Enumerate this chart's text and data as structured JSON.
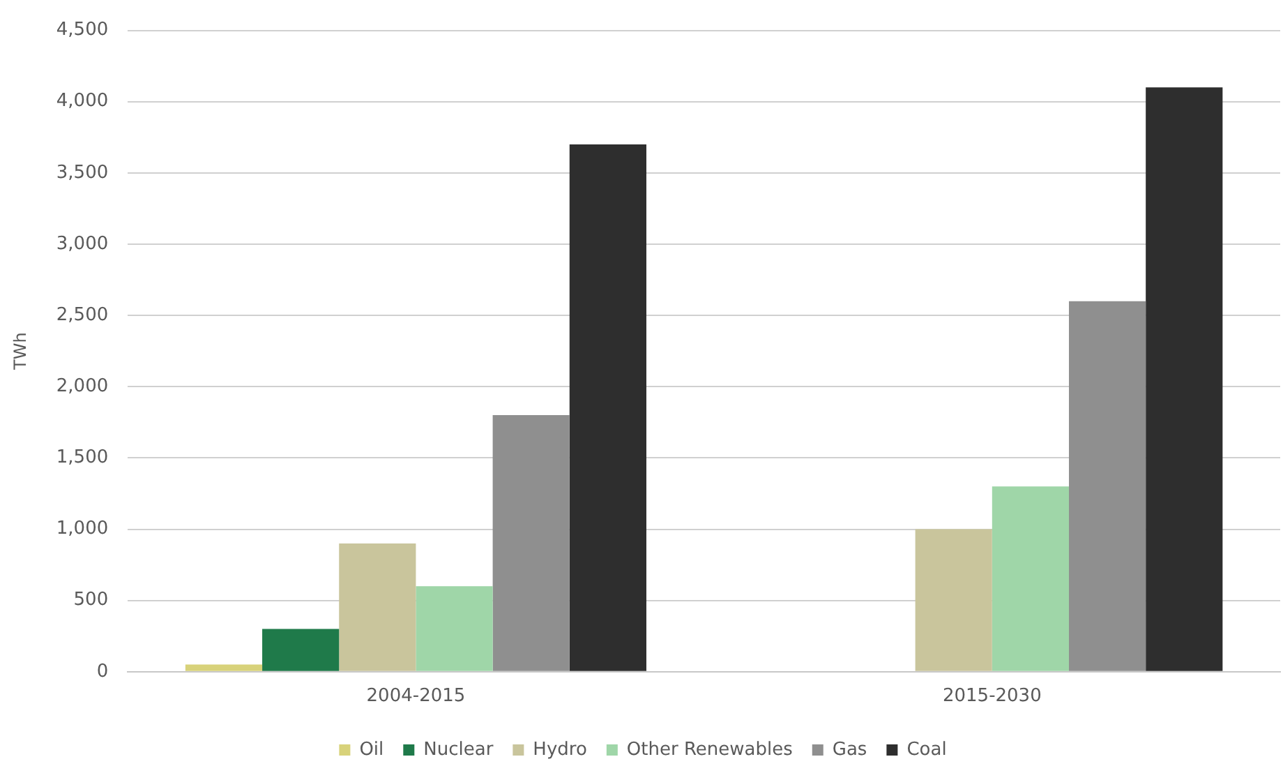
{
  "chart_data": {
    "type": "bar",
    "ylabel": "TWh",
    "categories": [
      "2004-2015",
      "2015-2030"
    ],
    "series": [
      {
        "name": "Oil",
        "color": "#d8d27a",
        "values": [
          50,
          0
        ]
      },
      {
        "name": "Nuclear",
        "color": "#1f7a4a",
        "values": [
          300,
          0
        ]
      },
      {
        "name": "Hydro",
        "color": "#c9c59c",
        "values": [
          900,
          1000
        ]
      },
      {
        "name": "Other Renewables",
        "color": "#9fd6a8",
        "values": [
          600,
          1300
        ]
      },
      {
        "name": "Gas",
        "color": "#8f8f8f",
        "values": [
          1800,
          2600
        ]
      },
      {
        "name": "Coal",
        "color": "#2e2e2e",
        "values": [
          3700,
          4100
        ]
      }
    ],
    "ylim": [
      0,
      4500
    ],
    "yticks": [
      0,
      500,
      {
        "value": 1000,
        "label": "1,000"
      },
      {
        "value": 1500,
        "label": "1,500"
      },
      {
        "value": 2000,
        "label": "2,000"
      },
      {
        "value": 2500,
        "label": "2,500"
      },
      {
        "value": 3000,
        "label": "3,000"
      },
      {
        "value": 3500,
        "label": "3,500"
      },
      {
        "value": 4000,
        "label": "4,000"
      },
      {
        "value": 4500,
        "label": "4,500"
      }
    ],
    "grid": "y",
    "legend": "bottom"
  }
}
